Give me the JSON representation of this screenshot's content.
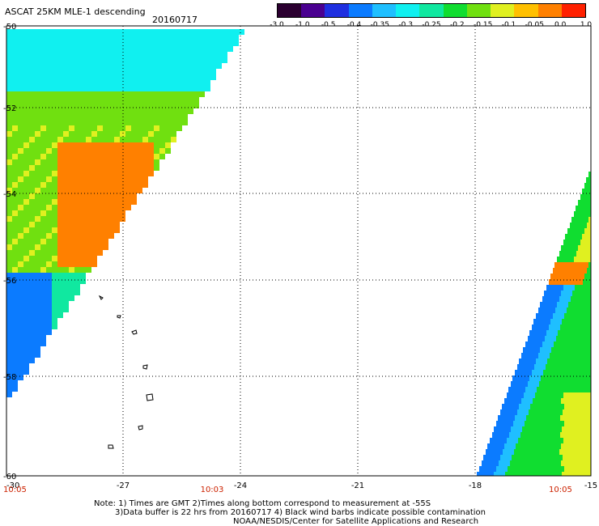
{
  "header": {
    "title": "ASCAT 25KM MLE-1 descending",
    "date": "20160717"
  },
  "colorbar": {
    "labels": [
      "-3.0",
      "-1.0",
      "-0.5",
      "-0.4",
      "-0.35",
      "-0.3",
      "-0.25",
      "-0.2",
      "-0.15",
      "-0.1",
      "-0.05",
      "0.0",
      "1.0"
    ],
    "colors": [
      "#2b0030",
      "#4a0090",
      "#1f2fe0",
      "#0b7bff",
      "#1fbfff",
      "#10f0f0",
      "#10e8a0",
      "#10dd30",
      "#70e010",
      "#e0f020",
      "#ffc000",
      "#ff8000",
      "#ff2000"
    ]
  },
  "map": {
    "lat_labels": [
      "-50",
      "-52",
      "-54",
      "-56",
      "-58",
      "-60"
    ],
    "lon_labels": [
      "-30",
      "-27",
      "-24",
      "-21",
      "-18",
      "-15"
    ],
    "time_labels": [
      "10:05",
      "10:03",
      "10:05"
    ]
  },
  "notes": {
    "line1": "Note: 1) Times are GMT 2)Times along bottom correspond to measurement at -55S",
    "line2": "3)Data buffer is 22 hrs from 20160717 4) Black wind barbs indicate possible contamination",
    "line3": "NOAA/NESDIS/Center for Satellite Applications and Research"
  }
}
